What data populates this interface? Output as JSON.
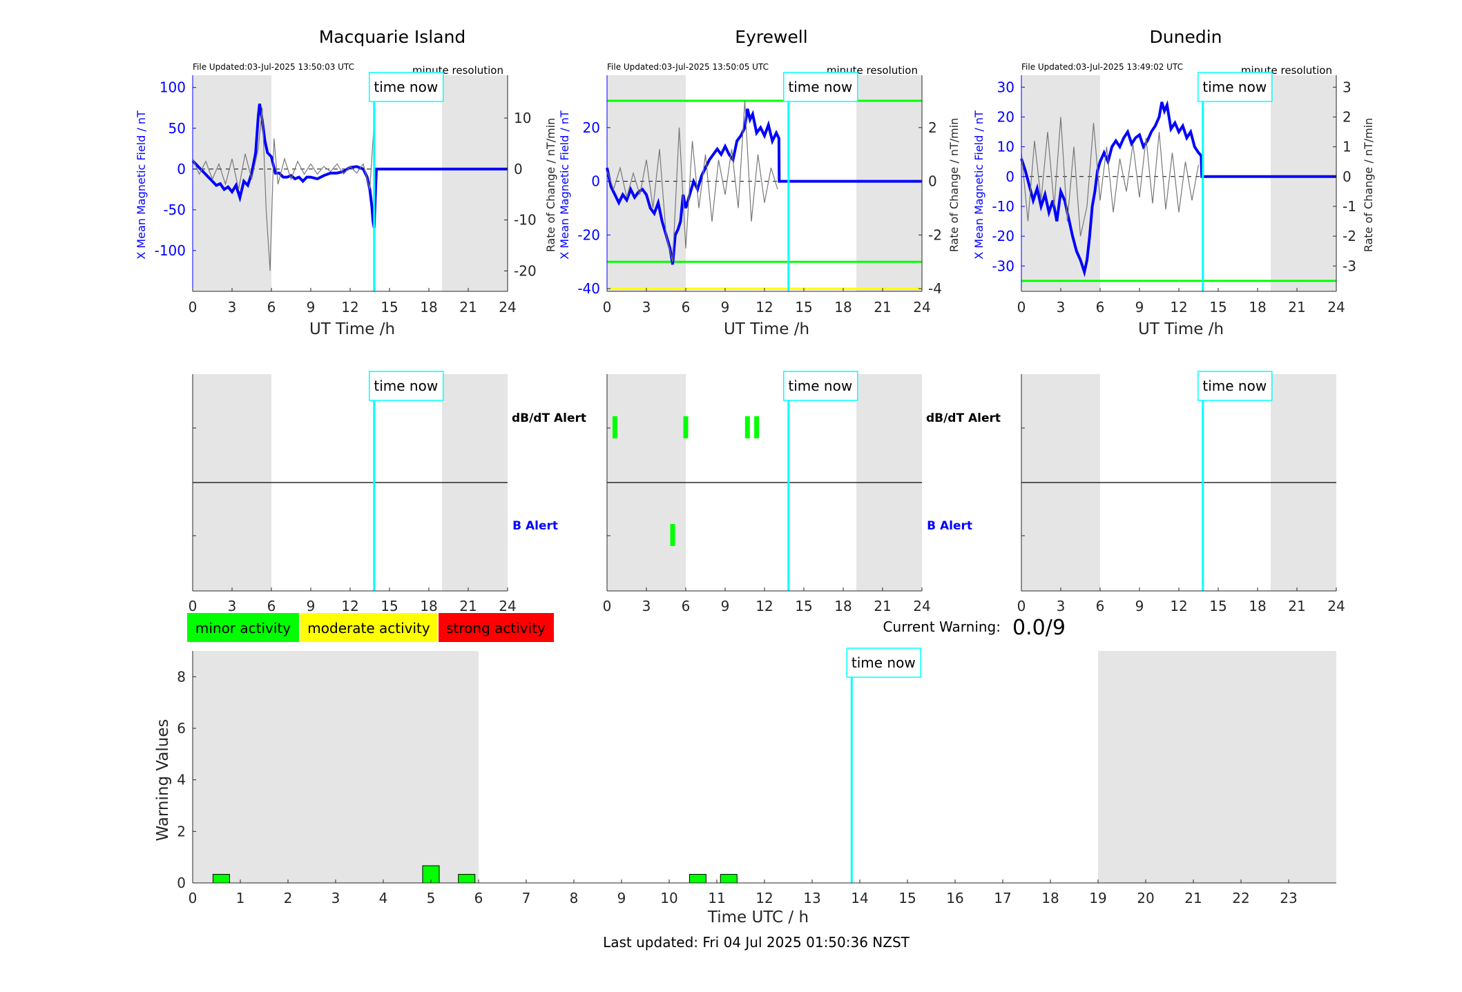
{
  "colors": {
    "field": "#0000ff",
    "rate": "#777777",
    "now": "#00ffff",
    "shade": "#e5e5e5",
    "green": "#00ff00",
    "yellow": "#ffff00",
    "red": "#ff0000",
    "axis": "#262626"
  },
  "labels": {
    "now": "time now",
    "resolution": "minute resolution",
    "ut_axis": "UT Time /h",
    "field_axis": "X Mean Magnetic Field / nT",
    "rate_axis": "Rate of Change / nT/min",
    "dbdt_alert": "dB/dT Alert",
    "b_alert": "B Alert"
  },
  "legend": [
    "minor activity",
    "moderate activity",
    "strong activity"
  ],
  "current_warning": {
    "label": "Current Warning:",
    "value": "0.0/9"
  },
  "last_updated": "Last updated: Fri 04 Jul 2025 01:50:36 NZST",
  "chart_data": [
    {
      "type": "line",
      "title": "Macquarie Island",
      "file_updated": "File Updated:03-Jul-2025 13:50:03 UTC",
      "xlabel": "UT Time /h",
      "ylabel": "X Mean Magnetic Field / nT",
      "y2label": "Rate of Change / nT/min",
      "xlim": [
        0,
        24
      ],
      "xticks": [
        0,
        3,
        6,
        9,
        12,
        15,
        18,
        21,
        24
      ],
      "ylim": [
        -150,
        115
      ],
      "yticks": [
        -100,
        -50,
        0,
        50,
        100
      ],
      "y2lim": [
        -24,
        18.4
      ],
      "y2ticks": [
        -20,
        -10,
        0,
        10
      ],
      "night": [
        [
          0,
          6
        ],
        [
          19,
          24
        ]
      ],
      "now": 13.83,
      "thresholds": [],
      "series": [
        {
          "name": "",
          "kind": "field",
          "x": [
            0,
            0.3,
            0.6,
            0.9,
            1.2,
            1.5,
            1.8,
            2.1,
            2.4,
            2.7,
            3,
            3.3,
            3.6,
            3.9,
            4.2,
            4.5,
            4.8,
            5,
            5.1,
            5.3,
            5.5,
            5.7,
            6,
            6.3,
            6.6,
            6.9,
            7.2,
            7.5,
            7.8,
            8.1,
            8.4,
            8.7,
            9,
            9.5,
            10,
            10.5,
            11,
            11.5,
            12,
            12.5,
            13,
            13.3,
            13.5,
            13.65,
            13.75,
            13.83,
            14,
            16,
            18,
            20,
            22,
            24
          ],
          "y": [
            10,
            5,
            0,
            -5,
            -10,
            -15,
            -20,
            -18,
            -25,
            -22,
            -28,
            -20,
            -35,
            -15,
            -20,
            -5,
            20,
            65,
            80,
            60,
            35,
            20,
            15,
            -5,
            -5,
            -10,
            -10,
            -8,
            -12,
            -10,
            -15,
            -10,
            -10,
            -12,
            -8,
            -5,
            -5,
            -3,
            2,
            3,
            0,
            -10,
            -25,
            -45,
            -65,
            -72,
            0,
            0,
            0,
            0,
            0,
            0
          ]
        },
        {
          "name": "",
          "kind": "rate",
          "x": [
            0,
            0.5,
            1,
            1.5,
            2,
            2.5,
            3,
            3.5,
            4,
            4.5,
            5,
            5.3,
            5.6,
            5.9,
            6.2,
            6.5,
            7,
            7.5,
            8,
            8.5,
            9,
            9.5,
            10,
            10.5,
            11,
            11.5,
            12,
            12.5,
            13,
            13.5,
            13.8
          ],
          "y": [
            2,
            -1,
            1.5,
            -2,
            1,
            -3,
            2,
            -4,
            3,
            -2,
            4,
            12,
            -8,
            -20,
            6,
            -3,
            2,
            -2,
            1.5,
            -1,
            1,
            -1,
            0.5,
            -0.5,
            1,
            -1,
            0.5,
            -0.8,
            1,
            -4,
            8
          ]
        }
      ]
    },
    {
      "type": "line",
      "title": "Eyrewell",
      "file_updated": "File Updated:03-Jul-2025 13:50:05 UTC",
      "xlabel": "UT Time /h",
      "ylabel": "X Mean Magnetic Field / nT",
      "y2label": "Rate of Change / nT/min",
      "xlim": [
        0,
        24
      ],
      "xticks": [
        0,
        3,
        6,
        9,
        12,
        15,
        18,
        21,
        24
      ],
      "ylim": [
        -41,
        39.5
      ],
      "yticks": [
        -40,
        -20,
        0,
        20
      ],
      "y2lim": [
        -4.1,
        3.95
      ],
      "y2ticks": [
        -4,
        -2,
        0,
        2
      ],
      "night": [
        [
          0,
          6
        ],
        [
          19,
          24
        ]
      ],
      "now": 13.83,
      "thresholds": [
        {
          "value": 30,
          "color": "#00ff00"
        },
        {
          "value": -30,
          "color": "#00ff00"
        },
        {
          "value": -40,
          "color": "#ffff00"
        }
      ],
      "series": [
        {
          "name": "",
          "kind": "field",
          "x": [
            0,
            0.3,
            0.6,
            0.9,
            1.2,
            1.5,
            1.8,
            2.1,
            2.4,
            2.7,
            3,
            3.3,
            3.6,
            3.9,
            4.2,
            4.5,
            4.8,
            5,
            5.2,
            5.4,
            5.6,
            5.8,
            6,
            6.3,
            6.6,
            6.9,
            7.2,
            7.5,
            7.8,
            8.1,
            8.4,
            8.7,
            9,
            9.3,
            9.6,
            9.9,
            10.2,
            10.5,
            10.7,
            10.9,
            11.1,
            11.4,
            11.7,
            12,
            12.3,
            12.6,
            12.9,
            13.1,
            13.12,
            14,
            16,
            18,
            20,
            22,
            24
          ],
          "y": [
            5,
            -2,
            -5,
            -8,
            -5,
            -7,
            -3,
            -6,
            -4,
            -3,
            -5,
            -10,
            -12,
            -8,
            -15,
            -20,
            -25,
            -31,
            -20,
            -18,
            -15,
            -5,
            -10,
            -5,
            0,
            -3,
            2,
            5,
            8,
            10,
            12,
            10,
            13,
            10,
            8,
            15,
            17,
            20,
            27,
            23,
            25,
            18,
            20,
            17,
            21,
            15,
            18,
            16,
            0,
            0,
            0,
            0,
            0,
            0,
            0
          ]
        },
        {
          "name": "",
          "kind": "rate",
          "x": [
            0,
            0.5,
            1,
            1.5,
            2,
            2.5,
            3,
            3.5,
            4,
            4.5,
            5,
            5.5,
            6,
            6.5,
            7,
            7.5,
            8,
            8.5,
            9,
            9.5,
            10,
            10.5,
            11,
            11.5,
            12,
            12.5,
            13
          ],
          "y": [
            0.4,
            -0.3,
            0.5,
            -0.6,
            0.3,
            -0.5,
            0.8,
            -1,
            1.2,
            -2,
            -3,
            2,
            -2.5,
            1.5,
            -1,
            1,
            -1.5,
            0.8,
            -0.5,
            1.2,
            -1,
            3,
            -1.5,
            1,
            -0.8,
            0.5,
            -0.3
          ]
        }
      ]
    },
    {
      "type": "line",
      "title": "Dunedin",
      "file_updated": "File Updated:03-Jul-2025 13:49:02 UTC",
      "xlabel": "UT Time /h",
      "ylabel": "X Mean Magnetic Field / nT",
      "y2label": "Rate of Change / nT/min",
      "xlim": [
        0,
        24
      ],
      "xticks": [
        0,
        3,
        6,
        9,
        12,
        15,
        18,
        21,
        24
      ],
      "ylim": [
        -38.5,
        34
      ],
      "yticks": [
        -30,
        -20,
        -10,
        0,
        10,
        20,
        30
      ],
      "y2lim": [
        -3.85,
        3.4
      ],
      "y2ticks": [
        -3,
        -2,
        -1,
        0,
        1,
        2,
        3
      ],
      "night": [
        [
          0,
          6
        ],
        [
          19,
          24
        ]
      ],
      "now": 13.83,
      "thresholds": [
        {
          "value": -35,
          "color": "#00ff00"
        }
      ],
      "series": [
        {
          "name": "",
          "kind": "field",
          "x": [
            0,
            0.3,
            0.6,
            0.9,
            1.2,
            1.5,
            1.8,
            2.1,
            2.4,
            2.7,
            3,
            3.3,
            3.6,
            3.9,
            4.2,
            4.5,
            4.8,
            5,
            5.2,
            5.4,
            5.6,
            5.8,
            6,
            6.3,
            6.6,
            6.9,
            7.2,
            7.5,
            7.8,
            8.1,
            8.4,
            8.7,
            9,
            9.3,
            9.6,
            9.9,
            10.2,
            10.5,
            10.7,
            10.9,
            11.1,
            11.4,
            11.7,
            12,
            12.3,
            12.6,
            12.9,
            13.2,
            13.5,
            13.7,
            13.75,
            14,
            16,
            18,
            20,
            22,
            24
          ],
          "y": [
            6,
            2,
            -3,
            -8,
            -4,
            -10,
            -6,
            -12,
            -8,
            -15,
            -5,
            -8,
            -14,
            -20,
            -25,
            -28,
            -32,
            -28,
            -20,
            -10,
            -5,
            2,
            5,
            8,
            5,
            10,
            12,
            10,
            13,
            15,
            11,
            13,
            14,
            10,
            12,
            15,
            17,
            20,
            25,
            22,
            24,
            16,
            18,
            15,
            17,
            13,
            15,
            10,
            8,
            7,
            0,
            0,
            0,
            0,
            0,
            0,
            0
          ]
        },
        {
          "name": "",
          "kind": "rate",
          "x": [
            0,
            0.5,
            1,
            1.5,
            2,
            2.5,
            3,
            3.5,
            4,
            4.5,
            5,
            5.5,
            6,
            6.5,
            7,
            7.5,
            8,
            8.5,
            9,
            9.5,
            10,
            10.5,
            11,
            11.5,
            12,
            12.5,
            13,
            13.5
          ],
          "y": [
            0.8,
            -1.5,
            1.2,
            -0.8,
            1.5,
            -1,
            2,
            -1.5,
            1,
            -2,
            -1,
            1.8,
            -0.8,
            1,
            -1.2,
            0.6,
            -0.5,
            1.1,
            -0.7,
            1.3,
            -0.9,
            1.5,
            -1.1,
            0.8,
            -1.2,
            0.5,
            -0.8,
            0.4
          ]
        }
      ]
    },
    {
      "type": "bar",
      "title": "",
      "ylabel": "",
      "xlim": [
        0,
        24
      ],
      "xticks": [
        0,
        3,
        6,
        9,
        12,
        15,
        18,
        21,
        24
      ],
      "categories": [
        "dB/dT Alert",
        "B Alert"
      ],
      "night": [
        [
          0,
          6
        ],
        [
          19,
          24
        ]
      ],
      "now": 13.83,
      "alerts_dbdt": [],
      "alerts_b": []
    },
    {
      "type": "bar",
      "title": "",
      "ylabel": "",
      "xlim": [
        0,
        24
      ],
      "xticks": [
        0,
        3,
        6,
        9,
        12,
        15,
        18,
        21,
        24
      ],
      "categories": [
        "dB/dT Alert",
        "B Alert"
      ],
      "night": [
        [
          0,
          6
        ],
        [
          19,
          24
        ]
      ],
      "now": 13.83,
      "alerts_dbdt": [
        0.6,
        6.0,
        10.7,
        11.4
      ],
      "alerts_b": [
        5.0
      ]
    },
    {
      "type": "bar",
      "title": "",
      "ylabel": "",
      "xlim": [
        0,
        24
      ],
      "xticks": [
        0,
        3,
        6,
        9,
        12,
        15,
        18,
        21,
        24
      ],
      "categories": [
        "dB/dT Alert",
        "B Alert"
      ],
      "night": [
        [
          0,
          6
        ],
        [
          19,
          24
        ]
      ],
      "now": 13.83,
      "alerts_dbdt": [],
      "alerts_b": []
    },
    {
      "type": "bar",
      "title": "",
      "xlabel": "Time UTC / h",
      "ylabel": "Warning Values",
      "xlim": [
        0,
        24
      ],
      "xticks": [
        0,
        1,
        2,
        3,
        4,
        5,
        6,
        7,
        8,
        9,
        10,
        11,
        12,
        13,
        14,
        15,
        16,
        17,
        18,
        19,
        20,
        21,
        22,
        23
      ],
      "ylim": [
        0,
        9
      ],
      "yticks": [
        0,
        2,
        4,
        6,
        8
      ],
      "night": [
        [
          0,
          6
        ],
        [
          19,
          24
        ]
      ],
      "now": 13.83,
      "bars": [
        {
          "x": 0.6,
          "value": 0.333
        },
        {
          "x": 5.0,
          "value": 0.667
        },
        {
          "x": 5.75,
          "value": 0.333
        },
        {
          "x": 10.6,
          "value": 0.333
        },
        {
          "x": 11.25,
          "value": 0.333
        }
      ]
    }
  ]
}
